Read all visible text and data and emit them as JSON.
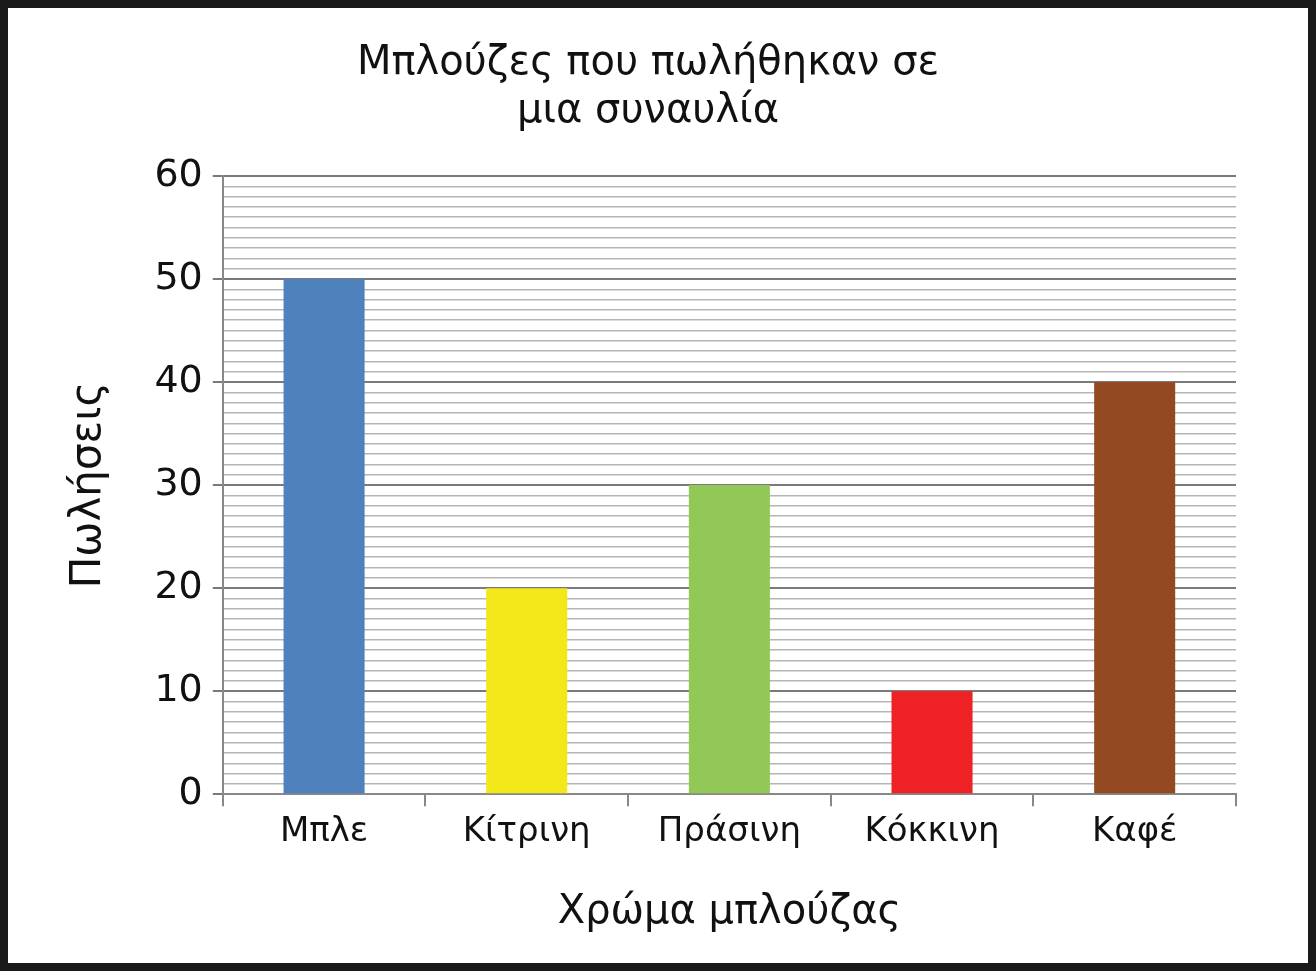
{
  "chart_data": {
    "type": "bar",
    "title": "Μπλούζες που πωλήθηκαν σε\nμια συναυλία",
    "xlabel": "Χρώμα μπλούζας",
    "ylabel": "Πωλήσεις",
    "categories": [
      "Μπλε",
      "Κίτρινη",
      "Πράσινη",
      "Κόκκινη",
      "Καφέ"
    ],
    "values": [
      50,
      20,
      30,
      10,
      40
    ],
    "colors": [
      "#4f81bd",
      "#f2e81a",
      "#92c857",
      "#ee2224",
      "#934a22"
    ],
    "ylim": [
      0,
      60
    ],
    "yticks": [
      0,
      {
        "value": 1,
        "label": null
      },
      {
        "value": 2,
        "label": null
      },
      {
        "value": 3,
        "label": null
      },
      {
        "value": 4,
        "label": null
      },
      {
        "value": 5,
        "label": null
      },
      {
        "value": 6,
        "label": null
      },
      {
        "value": 7,
        "label": null
      },
      {
        "value": 8,
        "label": null
      },
      {
        "value": 9,
        "label": null
      },
      10,
      {
        "value": 11,
        "label": null
      },
      {
        "value": 12,
        "label": null
      },
      {
        "value": 13,
        "label": null
      },
      {
        "value": 14,
        "label": null
      },
      {
        "value": 15,
        "label": null
      },
      {
        "value": 16,
        "label": null
      },
      {
        "value": 17,
        "label": null
      },
      {
        "value": 18,
        "label": null
      },
      {
        "value": 19,
        "label": null
      },
      20,
      {
        "value": 21,
        "label": null
      },
      {
        "value": 22,
        "label": null
      },
      {
        "value": 23,
        "label": null
      },
      {
        "value": 24,
        "label": null
      },
      {
        "value": 25,
        "label": null
      },
      {
        "value": 26,
        "label": null
      },
      {
        "value": 27,
        "label": null
      },
      {
        "value": 28,
        "label": null
      },
      {
        "value": 29,
        "label": null
      },
      30,
      {
        "value": 31,
        "label": null
      },
      {
        "value": 32,
        "label": null
      },
      {
        "value": 33,
        "label": null
      },
      {
        "value": 34,
        "label": null
      },
      {
        "value": 35,
        "label": null
      },
      {
        "value": 36,
        "label": null
      },
      {
        "value": 37,
        "label": null
      },
      {
        "value": 38,
        "label": null
      },
      {
        "value": 39,
        "label": null
      },
      40,
      {
        "value": 41,
        "label": null
      },
      {
        "value": 42,
        "label": null
      },
      {
        "value": 43,
        "label": null
      },
      {
        "value": 44,
        "label": null
      },
      {
        "value": 45,
        "label": null
      },
      {
        "value": 46,
        "label": null
      },
      {
        "value": 47,
        "label": null
      },
      {
        "value": 48,
        "label": null
      },
      {
        "value": 49,
        "label": null
      },
      50,
      {
        "value": 51,
        "label": null
      },
      {
        "value": 52,
        "label": null
      },
      {
        "value": 53,
        "label": null
      },
      {
        "value": 54,
        "label": null
      },
      {
        "value": 55,
        "label": null
      },
      {
        "value": 56,
        "label": null
      },
      {
        "value": 57,
        "label": null
      },
      {
        "value": 58,
        "label": null
      },
      {
        "value": 59,
        "label": null
      },
      60
    ],
    "grid": "y",
    "legend": false
  }
}
